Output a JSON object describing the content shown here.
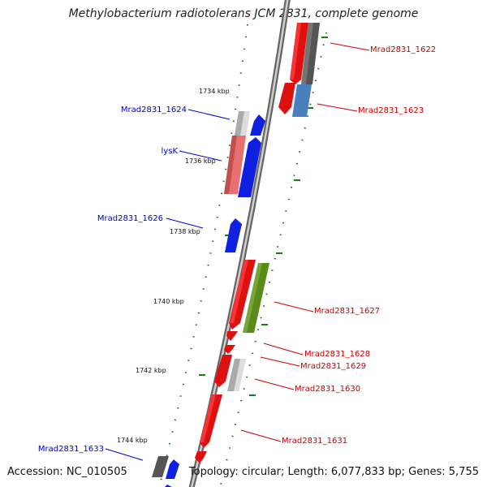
{
  "title": "Methylobacterium radiotolerans JCM 2831, complete genome",
  "accession": "Accession: NC_010505",
  "topology": "Topology: circular; Length: 6,077,833 bp; Genes: 5,755",
  "ticks": [
    "1734 kbp",
    "1736 kbp",
    "1738 kbp",
    "1740 kbp",
    "1742 kbp",
    "1744 kbp"
  ],
  "reverse_genes": [
    {
      "label": "Mrad2831_1624",
      "color": "#0000cc"
    },
    {
      "label": "lysK",
      "color": "#0000cc"
    },
    {
      "label": "Mrad2831_1626",
      "color": "#0000cc"
    },
    {
      "label": "Mrad2831_1633",
      "color": "#0000cc"
    }
  ],
  "forward_genes": [
    {
      "label": "Mrad2831_1622",
      "color": "#cc0000"
    },
    {
      "label": "Mrad2831_1623",
      "color": "#cc0000"
    },
    {
      "label": "Mrad2831_1627",
      "color": "#cc0000"
    },
    {
      "label": "Mrad2831_1628",
      "color": "#cc0000"
    },
    {
      "label": "Mrad2831_1629",
      "color": "#cc0000"
    },
    {
      "label": "Mrad2831_1630",
      "color": "#cc0000"
    },
    {
      "label": "Mrad2831_1631",
      "color": "#cc0000"
    }
  ]
}
